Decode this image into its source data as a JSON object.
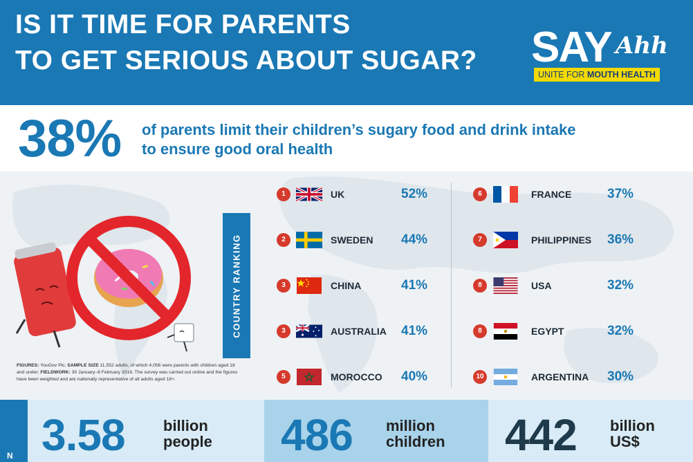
{
  "header": {
    "title_line1": "IS IT TIME FOR PARENTS",
    "title_line2": "TO GET SERIOUS ABOUT SUGAR?",
    "logo_say": "SAY",
    "logo_ahh": "Ahh",
    "logo_tag_lite": "UNITE FOR ",
    "logo_tag_bold": "MOUTH HEALTH"
  },
  "headline": {
    "value": "38%",
    "text_line1": "of parents limit their children’s sugary food and drink intake",
    "text_line2": "to ensure good oral health"
  },
  "ranking": {
    "label": "COUNTRY RANKING",
    "left": [
      {
        "rank": "1",
        "country": "UK",
        "pct": "52%",
        "flag": "uk-flag"
      },
      {
        "rank": "2",
        "country": "SWEDEN",
        "pct": "44%",
        "flag": "sweden-flag"
      },
      {
        "rank": "3",
        "country": "CHINA",
        "pct": "41%",
        "flag": "china-flag"
      },
      {
        "rank": "3",
        "country": "AUSTRALIA",
        "pct": "41%",
        "flag": "australia-flag"
      },
      {
        "rank": "5",
        "country": "MOROCCO",
        "pct": "40%",
        "flag": "morocco-flag"
      }
    ],
    "right": [
      {
        "rank": "6",
        "country": "FRANCE",
        "pct": "37%",
        "flag": "france-flag"
      },
      {
        "rank": "7",
        "country": "PHILIPPINES",
        "pct": "36%",
        "flag": "philippines-flag"
      },
      {
        "rank": "8",
        "country": "USA",
        "pct": "32%",
        "flag": "usa-flag"
      },
      {
        "rank": "8",
        "country": "EGYPT",
        "pct": "32%",
        "flag": "egypt-flag"
      },
      {
        "rank": "10",
        "country": "ARGENTINA",
        "pct": "30%",
        "flag": "argentina-flag"
      }
    ]
  },
  "figures_note": {
    "label1": "FIGURES:",
    "text1": " YouGov Plc; ",
    "label2": "SAMPLE SIZE",
    "text2": " 11,552 adults, of which 4,056 were parents with children aged 18 and under; ",
    "label3": "FIELDWORK:",
    "text3": " 30 January–8 February 2018. The survey was carried out online and the figures have been weighted and are nationally representative of all adults aged 18+."
  },
  "bottom": {
    "strip_text": "N",
    "stats": [
      {
        "value": "3.58",
        "unit_line1": "billion",
        "unit_line2": "people"
      },
      {
        "value": "486",
        "unit_line1": "million",
        "unit_line2": "children"
      },
      {
        "value": "442",
        "unit_line1": "billion",
        "unit_line2": "US$"
      }
    ]
  },
  "colors": {
    "brand_blue": "#1a78b4",
    "rank_red": "#d63a2c",
    "logo_yellow": "#f2d900"
  }
}
